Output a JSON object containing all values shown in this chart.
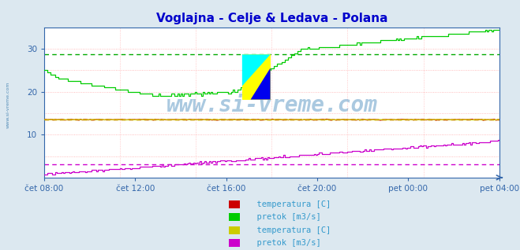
{
  "title": "Voglajna - Celje & Ledava - Polana",
  "title_color": "#0000cc",
  "bg_color": "#dce8f0",
  "plot_bg_color": "#ffffff",
  "grid_color_h": "#ffaaaa",
  "grid_color_v": "#ffbbbb",
  "x_labels": [
    "čet 08:00",
    "čet 12:00",
    "čet 16:00",
    "čet 20:00",
    "pet 00:00",
    "pet 04:00"
  ],
  "ylim": [
    0,
    35
  ],
  "yticks": [
    10,
    20,
    30
  ],
  "n_points": 288,
  "watermark": "www.si-vreme.com",
  "watermark_color": "#4488bb",
  "watermark_alpha": 0.45,
  "legend1_labels": [
    "  temperatura [C]",
    "  pretok [m3/s]"
  ],
  "legend1_colors": [
    "#cc0000",
    "#00cc00"
  ],
  "legend2_labels": [
    "  temperatura [C]",
    "  pretok [m3/s]"
  ],
  "legend2_colors": [
    "#cccc00",
    "#cc00cc"
  ],
  "line1_temp_color": "#cc0000",
  "line1_flow_color": "#00cc00",
  "line2_temp_color": "#cccc00",
  "line2_flow_color": "#cc00cc",
  "avg1_temp_color": "#cc0000",
  "avg1_flow_color": "#00aa00",
  "avg2_temp_color": "#cccc00",
  "avg2_flow_color": "#cc00cc",
  "line1_temp_val": 13.5,
  "line2_temp_val": 13.5,
  "avg1_flow": 28.8,
  "avg2_flow": 3.0,
  "avg1_temp": 13.5,
  "avg2_temp": 13.5,
  "tick_color": "#3366aa",
  "spine_color": "#3366aa"
}
